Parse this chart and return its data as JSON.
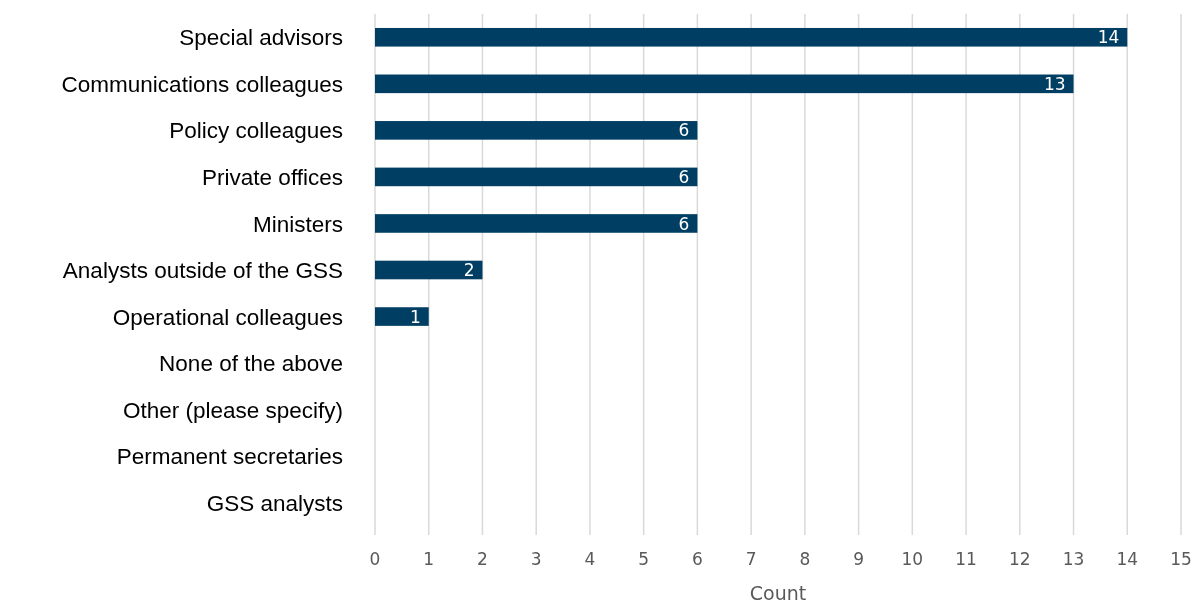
{
  "chart_data": {
    "type": "bar",
    "orientation": "horizontal",
    "xlabel": "Count",
    "categories": [
      "Special advisors",
      "Communications colleagues",
      "Policy colleagues",
      "Private offices",
      "Ministers",
      "Analysts outside of the GSS",
      "Operational colleagues",
      "None of the above",
      "Other (please specify)",
      "Permanent secretaries",
      "GSS analysts"
    ],
    "values": [
      14,
      13,
      6,
      6,
      6,
      2,
      1,
      0,
      0,
      0,
      0
    ],
    "value_labels": [
      "14",
      "13",
      "6",
      "6",
      "6",
      "2",
      "1",
      null,
      null,
      null,
      null
    ],
    "color": "#003f63",
    "xlim": [
      0,
      15
    ],
    "xticks": [
      0,
      1,
      2,
      3,
      4,
      5,
      6,
      7,
      8,
      9,
      10,
      11,
      12,
      13,
      14,
      15
    ],
    "grid": "x"
  }
}
